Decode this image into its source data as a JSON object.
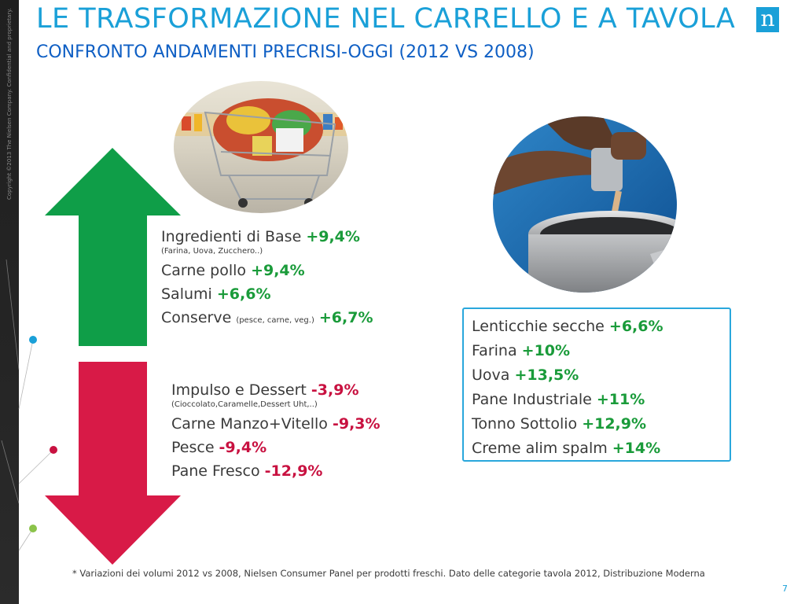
{
  "sidebar": {
    "copyright": "Copyright ©2013 The Nielsen Company. Confidential and proprietary."
  },
  "header": {
    "title": "LE TRASFORMAZIONE NEL CARRELLO E A TAVOLA",
    "subtitle": "CONFRONTO ANDAMENTI PRECRISI-OGGI (2012 VS 2008)"
  },
  "logo": {
    "letter": "n",
    "brand_color": "#1aa0d8"
  },
  "colors": {
    "up_arrow": "#0f9e48",
    "down_arrow": "#d81a47",
    "positive_text": "#1a9b3a",
    "negative_text": "#c81140",
    "box_border": "#29a7dc"
  },
  "increases": {
    "items": [
      {
        "label": "Ingredienti di Base ",
        "value": "+9,4%",
        "note": "(Farina, Uova, Zucchero..)"
      },
      {
        "label": "Carne pollo ",
        "value": "+9,4%"
      },
      {
        "label": "Salumi ",
        "value": "+6,6%"
      },
      {
        "label": "Conserve ",
        "inline_note": "(pesce, carne, veg.)",
        "value": "+6,7%"
      }
    ]
  },
  "decreases": {
    "items": [
      {
        "label": "Impulso e Dessert ",
        "value": "-3,9%",
        "note": "(Cioccolato,Caramelle,Dessert Uht,..)"
      },
      {
        "label": "Carne Manzo+Vitello ",
        "value": "-9,3%"
      },
      {
        "label": "Pesce ",
        "value": "-9,4%"
      },
      {
        "label": "Pane Fresco ",
        "value": "-12,9%"
      }
    ]
  },
  "table_box": {
    "items": [
      {
        "label": "Lenticchie secche ",
        "value": "+6,6%"
      },
      {
        "label": "Farina ",
        "value": "+10%"
      },
      {
        "label": "Uova ",
        "value": "+13,5%"
      },
      {
        "label": "Pane Industriale ",
        "value": "+11%"
      },
      {
        "label": "Tonno Sottolio ",
        "value": "+12,9%"
      },
      {
        "label": "Creme alim spalm ",
        "value": "+14%"
      }
    ]
  },
  "footnote": "* Variazioni dei volumi 2012 vs 2008,  Nielsen Consumer Panel per prodotti freschi. Dato delle categorie tavola 2012, Distribuzione Moderna",
  "page_number": "7"
}
